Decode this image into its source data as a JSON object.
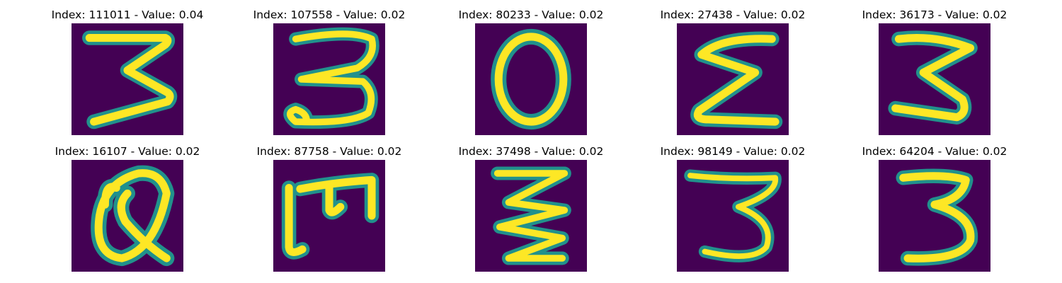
{
  "colors": {
    "background": "#440154",
    "stroke_edge": "#21918c",
    "stroke_mid": "#5ec962",
    "stroke_core": "#fde725"
  },
  "panels": [
    {
      "title": "Index: 111011 - Value: 0.04",
      "glyph": "3"
    },
    {
      "title": "Index: 107558 - Value: 0.02",
      "glyph": "3"
    },
    {
      "title": "Index: 80233 - Value: 0.02",
      "glyph": "0"
    },
    {
      "title": "Index: 27438 - Value: 0.02",
      "glyph": "ε"
    },
    {
      "title": "Index: 36173 - Value: 0.02",
      "glyph": "3"
    },
    {
      "title": "Index: 16107 - Value: 0.02",
      "glyph": "Q"
    },
    {
      "title": "Index: 87758 - Value: 0.02",
      "glyph": "m"
    },
    {
      "title": "Index: 37498 - Value: 0.02",
      "glyph": "3"
    },
    {
      "title": "Index: 98149 - Value: 0.02",
      "glyph": "3"
    },
    {
      "title": "Index: 64204 - Value: 0.02",
      "glyph": "3"
    }
  ]
}
